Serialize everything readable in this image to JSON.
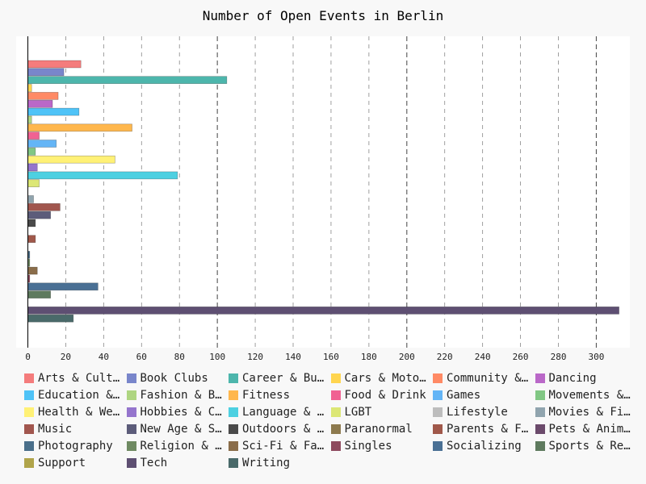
{
  "chart_data": {
    "type": "bar",
    "orientation": "horizontal",
    "title": "Number of Open Events in Berlin",
    "xlabel": "",
    "ylabel": "",
    "xlim": [
      0,
      318
    ],
    "x_ticks": [
      0,
      20,
      40,
      60,
      80,
      100,
      120,
      140,
      160,
      180,
      200,
      220,
      240,
      260,
      280,
      300
    ],
    "major_gridlines": [
      100,
      200,
      300
    ],
    "grid": true,
    "legend_position": "bottom",
    "legend_labels": [
      "Arts & Cultu…",
      "Book Clubs",
      "Career & Bus…",
      "Cars & Motor…",
      "Community & …",
      "Dancing",
      "Education & …",
      "Fashion & Be…",
      "Fitness",
      "Food & Drink",
      "Games",
      "Movements & …",
      "Health & Wel…",
      "Hobbies & Cr…",
      "Language & E…",
      "LGBT",
      "Lifestyle",
      "Movies & Film",
      "Music",
      "New Age & Sp…",
      "Outdoors & A…",
      "Paranormal",
      "Parents & Fa…",
      "Pets & Anima…",
      "Photography",
      "Religion & B…",
      "Sci-Fi & Fan…",
      "Singles",
      "Socializing",
      "Sports & Rec…",
      "Support",
      "Tech",
      "Writing"
    ],
    "series": [
      {
        "values": [
          28
        ],
        "color": "#f47c7c"
      },
      {
        "values": [
          19
        ],
        "color": "#7986cb"
      },
      {
        "values": [
          105
        ],
        "color": "#4db6ac"
      },
      {
        "values": [
          2
        ],
        "color": "#ffd54f"
      },
      {
        "values": [
          16
        ],
        "color": "#ff8a65"
      },
      {
        "values": [
          13
        ],
        "color": "#ba68c8"
      },
      {
        "values": [
          27
        ],
        "color": "#4fc3f7"
      },
      {
        "values": [
          2
        ],
        "color": "#aed581"
      },
      {
        "values": [
          55
        ],
        "color": "#ffb74d"
      },
      {
        "values": [
          6
        ],
        "color": "#f06292"
      },
      {
        "values": [
          15
        ],
        "color": "#64b5f6"
      },
      {
        "values": [
          4
        ],
        "color": "#81c784"
      },
      {
        "values": [
          46
        ],
        "color": "#fff176"
      },
      {
        "values": [
          5
        ],
        "color": "#9575cd"
      },
      {
        "values": [
          79
        ],
        "color": "#4dd0e1"
      },
      {
        "values": [
          6
        ],
        "color": "#dce775"
      },
      {
        "values": [
          0
        ],
        "color": "#bdbdbd"
      },
      {
        "values": [
          3
        ],
        "color": "#90a4ae"
      },
      {
        "values": [
          17
        ],
        "color": "#a1564e"
      },
      {
        "values": [
          12
        ],
        "color": "#5c5c7a"
      },
      {
        "values": [
          4
        ],
        "color": "#4a4a4a"
      },
      {
        "values": [
          0
        ],
        "color": "#8d7a4e"
      },
      {
        "values": [
          4
        ],
        "color": "#a0584a"
      },
      {
        "values": [
          0
        ],
        "color": "#6b4a6b"
      },
      {
        "values": [
          1
        ],
        "color": "#4a6f8a"
      },
      {
        "values": [
          1
        ],
        "color": "#6f8a62"
      },
      {
        "values": [
          5
        ],
        "color": "#8a6d4a"
      },
      {
        "values": [
          1
        ],
        "color": "#8e4a5e"
      },
      {
        "values": [
          37
        ],
        "color": "#4a7094"
      },
      {
        "values": [
          12
        ],
        "color": "#5e7a5e"
      },
      {
        "values": [
          0
        ],
        "color": "#b0a44a"
      },
      {
        "values": [
          312
        ],
        "color": "#5e4f72"
      },
      {
        "values": [
          24
        ],
        "color": "#4a6a6a"
      }
    ]
  }
}
